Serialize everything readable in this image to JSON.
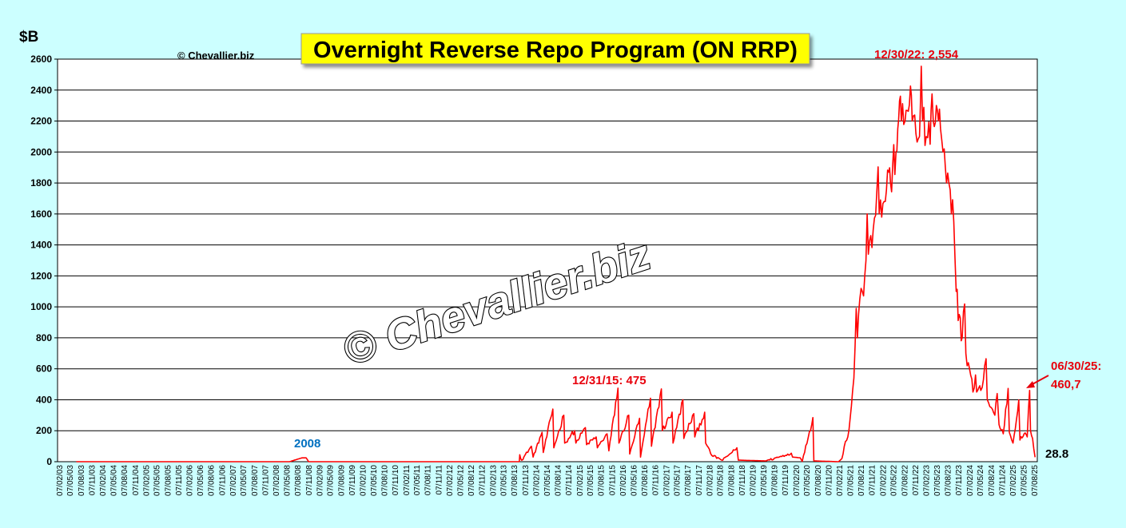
{
  "chart_data": {
    "type": "line",
    "title": "Overnight Reverse Repo Program (ON RRP)",
    "ylabel": "$B",
    "xlabel": "",
    "credit": "© Chevallier.biz",
    "watermark": "© Chevallier.biz",
    "ylim": [
      0,
      2600
    ],
    "yticks": [
      0,
      200,
      400,
      600,
      800,
      1000,
      1200,
      1400,
      1600,
      1800,
      2000,
      2200,
      2400,
      2600
    ],
    "x_tick_labels": [
      "07/02/03",
      "07/05/03",
      "07/08/03",
      "07/11/03",
      "07/02/04",
      "07/05/04",
      "07/08/04",
      "07/11/04",
      "07/02/05",
      "07/05/05",
      "07/08/05",
      "07/11/05",
      "07/02/06",
      "07/05/06",
      "07/08/06",
      "07/11/06",
      "07/02/07",
      "07/05/07",
      "07/08/07",
      "07/11/07",
      "07/02/08",
      "07/05/08",
      "07/08/08",
      "07/11/08",
      "07/02/09",
      "07/05/09",
      "07/08/09",
      "07/11/09",
      "07/02/10",
      "07/05/10",
      "07/08/10",
      "07/11/10",
      "07/02/11",
      "07/05/11",
      "07/08/11",
      "07/11/11",
      "07/02/12",
      "07/05/12",
      "07/08/12",
      "07/11/12",
      "07/02/13",
      "07/05/13",
      "07/08/13",
      "07/11/13",
      "07/02/14",
      "07/05/14",
      "07/08/14",
      "07/11/14",
      "07/02/15",
      "07/05/15",
      "07/08/15",
      "07/11/15",
      "07/02/16",
      "07/05/16",
      "07/08/16",
      "07/11/16",
      "07/02/17",
      "07/05/17",
      "07/08/17",
      "07/11/17",
      "07/02/18",
      "07/05/18",
      "07/08/18",
      "07/11/18",
      "07/02/19",
      "07/05/19",
      "07/08/19",
      "07/11/19",
      "07/02/20",
      "07/05/20",
      "07/08/20",
      "07/11/20",
      "07/02/21",
      "07/05/21",
      "07/08/21",
      "07/11/21",
      "07/02/22",
      "07/05/22",
      "07/08/22",
      "07/11/22",
      "07/02/23",
      "07/05/23",
      "07/08/23",
      "07/11/23",
      "07/02/24",
      "07/05/24",
      "07/08/24",
      "07/11/24",
      "07/02/25",
      "07/05/25",
      "07/08/25"
    ],
    "grid": true,
    "series": [
      {
        "color": "#ff0000",
        "points": [
          [
            "2003-07-02",
            0
          ],
          [
            "2008-06-01",
            0
          ],
          [
            "2008-09-15",
            25
          ],
          [
            "2008-10-20",
            25
          ],
          [
            "2008-11-10",
            0
          ],
          [
            "2013-09-20",
            0
          ],
          [
            "2013-09-24",
            45
          ],
          [
            "2013-10-10",
            10
          ],
          [
            "2013-12-31",
            100
          ],
          [
            "2014-01-15",
            30
          ],
          [
            "2014-03-31",
            190
          ],
          [
            "2014-04-10",
            60
          ],
          [
            "2014-06-30",
            340
          ],
          [
            "2014-07-08",
            90
          ],
          [
            "2014-09-30",
            300
          ],
          [
            "2014-10-08",
            120
          ],
          [
            "2014-12-31",
            200
          ],
          [
            "2015-01-10",
            120
          ],
          [
            "2015-03-31",
            220
          ],
          [
            "2015-04-10",
            110
          ],
          [
            "2015-06-30",
            160
          ],
          [
            "2015-07-10",
            90
          ],
          [
            "2015-09-30",
            180
          ],
          [
            "2015-10-15",
            70
          ],
          [
            "2015-12-31",
            475
          ],
          [
            "2016-01-08",
            120
          ],
          [
            "2016-03-31",
            300
          ],
          [
            "2016-04-08",
            50
          ],
          [
            "2016-06-30",
            280
          ],
          [
            "2016-07-08",
            30
          ],
          [
            "2016-09-30",
            410
          ],
          [
            "2016-10-08",
            100
          ],
          [
            "2016-12-31",
            470
          ],
          [
            "2017-01-08",
            200
          ],
          [
            "2017-03-31",
            320
          ],
          [
            "2017-04-08",
            120
          ],
          [
            "2017-06-30",
            400
          ],
          [
            "2017-07-08",
            150
          ],
          [
            "2017-09-30",
            310
          ],
          [
            "2017-10-08",
            160
          ],
          [
            "2017-12-31",
            320
          ],
          [
            "2018-01-08",
            120
          ],
          [
            "2018-03-01",
            40
          ],
          [
            "2018-06-01",
            10
          ],
          [
            "2018-09-28",
            90
          ],
          [
            "2018-10-10",
            10
          ],
          [
            "2019-06-01",
            5
          ],
          [
            "2019-12-31",
            55
          ],
          [
            "2020-01-10",
            30
          ],
          [
            "2020-03-15",
            25
          ],
          [
            "2020-04-01",
            2
          ],
          [
            "2020-06-30",
            285
          ],
          [
            "2020-07-08",
            5
          ],
          [
            "2021-02-01",
            0
          ],
          [
            "2021-03-01",
            20
          ],
          [
            "2021-03-31",
            130
          ],
          [
            "2021-04-20",
            160
          ],
          [
            "2021-05-20",
            360
          ],
          [
            "2021-06-10",
            540
          ],
          [
            "2021-06-30",
            990
          ],
          [
            "2021-07-10",
            800
          ],
          [
            "2021-07-30",
            1050
          ],
          [
            "2021-08-20",
            1100
          ],
          [
            "2021-09-10",
            1200
          ],
          [
            "2021-09-30",
            1600
          ],
          [
            "2021-10-10",
            1340
          ],
          [
            "2021-10-30",
            1460
          ],
          [
            "2021-11-20",
            1500
          ],
          [
            "2021-12-31",
            1904
          ],
          [
            "2022-01-10",
            1600
          ],
          [
            "2022-02-20",
            1680
          ],
          [
            "2022-03-31",
            1870
          ],
          [
            "2022-04-15",
            1800
          ],
          [
            "2022-05-31",
            2000
          ],
          [
            "2022-06-15",
            2150
          ],
          [
            "2022-06-30",
            2330
          ],
          [
            "2022-07-15",
            2200
          ],
          [
            "2022-08-15",
            2200
          ],
          [
            "2022-09-30",
            2426
          ],
          [
            "2022-10-15",
            2200
          ],
          [
            "2022-11-15",
            2120
          ],
          [
            "2022-12-15",
            2100
          ],
          [
            "2022-12-30",
            2554
          ],
          [
            "2023-01-10",
            2200
          ],
          [
            "2023-02-10",
            2100
          ],
          [
            "2023-03-15",
            2050
          ],
          [
            "2023-03-31",
            2375
          ],
          [
            "2023-04-10",
            2200
          ],
          [
            "2023-05-15",
            2270
          ],
          [
            "2023-06-10",
            2150
          ],
          [
            "2023-07-01",
            2000
          ],
          [
            "2023-07-31",
            1800
          ],
          [
            "2023-08-20",
            1800
          ],
          [
            "2023-09-10",
            1600
          ],
          [
            "2023-09-30",
            1550
          ],
          [
            "2023-10-20",
            1100
          ],
          [
            "2023-11-15",
            950
          ],
          [
            "2023-12-10",
            800
          ],
          [
            "2023-12-31",
            1019
          ],
          [
            "2024-01-10",
            700
          ],
          [
            "2024-02-10",
            600
          ],
          [
            "2024-03-10",
            450
          ],
          [
            "2024-03-31",
            560
          ],
          [
            "2024-04-10",
            450
          ],
          [
            "2024-05-15",
            460
          ],
          [
            "2024-06-28",
            665
          ],
          [
            "2024-07-08",
            400
          ],
          [
            "2024-08-10",
            350
          ],
          [
            "2024-09-10",
            300
          ],
          [
            "2024-09-30",
            440
          ],
          [
            "2024-10-15",
            240
          ],
          [
            "2024-11-20",
            180
          ],
          [
            "2024-12-31",
            473
          ],
          [
            "2025-01-10",
            190
          ],
          [
            "2025-02-10",
            120
          ],
          [
            "2025-03-31",
            399
          ],
          [
            "2025-04-10",
            140
          ],
          [
            "2025-05-15",
            180
          ],
          [
            "2025-06-10",
            160
          ],
          [
            "2025-06-30",
            460.7
          ],
          [
            "2025-07-08",
            200
          ],
          [
            "2025-07-25",
            150
          ],
          [
            "2025-08-15",
            28.8
          ]
        ]
      }
    ],
    "annotations": [
      {
        "id": "ann-2008",
        "text": "2008",
        "color": "#0070c0"
      },
      {
        "id": "ann-2015",
        "text": "12/31/15: 475",
        "color": "#e8000c"
      },
      {
        "id": "ann-2022",
        "text": "12/30/22: 2,554",
        "color": "#e8000c"
      },
      {
        "id": "ann-2025-line1",
        "text": "06/30/25:",
        "color": "#e8000c"
      },
      {
        "id": "ann-2025-line2",
        "text": "460,7",
        "color": "#e8000c"
      },
      {
        "id": "ann-last",
        "text": "28.8",
        "color": "#000000"
      }
    ],
    "legend": "none"
  }
}
